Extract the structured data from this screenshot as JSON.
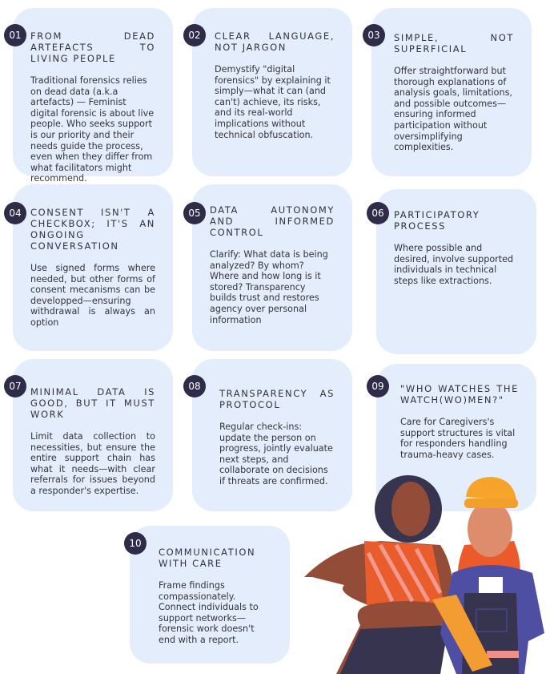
{
  "colors": {
    "card": "#e4edfb",
    "badge": "#2e2c48"
  },
  "cards": [
    {
      "num": "01",
      "title": "From dead artefacts to living people",
      "body": "Traditional forensics relies on dead data (a.k.a artefacts) — Feminist digital forensic is about live people. Who seeks support is our priority and their needs guide the process, even when they differ from what facilitators might recommend."
    },
    {
      "num": "02",
      "title": "Clear language, not jargon",
      "body": "Demystify \"digital forensics\" by explaining it simply—what it can (and can't) achieve, its risks, and its real-world implications without technical obfuscation."
    },
    {
      "num": "03",
      "title": "Simple, not superficial",
      "body": "Offer straightforward but thorough explanations of analysis goals, limitations, and possible outcomes—ensuring informed participation without oversimplifying complexities."
    },
    {
      "num": "04",
      "title": "Consent isn't a checkbox; it's an ongoing conversation",
      "body": "Use signed forms where needed, but other forms of consent mecanisms can be developped—ensuring withdrawal is always an option"
    },
    {
      "num": "05",
      "title": "Data autonomy and informed control",
      "body": "Clarify: What data is being analyzed? By whom? Where and how long is it stored? Transparency builds trust and restores agency over personal information"
    },
    {
      "num": "06",
      "title": "Participatory process",
      "body": "Where possible and desired, involve supported individuals in technical steps like extractions."
    },
    {
      "num": "07",
      "title": "Minimal data is good, but it must work",
      "body": "Limit data collection to necessities, but ensure the entire support chain has what it needs—with clear referrals for issues beyond a responder's expertise."
    },
    {
      "num": "08",
      "title": "Transparency as protocol",
      "body": "Regular check-ins: update the person on progress, jointly evaluate next steps, and collaborate on decisions if threats are confirmed."
    },
    {
      "num": "09",
      "title": "\"Who watches the watch(wo)men?\"",
      "body": "Care for Caregivers's support structures is vital for responders handling trauma-heavy cases."
    },
    {
      "num": "10",
      "title": "Communication with care",
      "body": "Frame findings compassionately. Connect individuals to support networks— forensic work doesn't end with a report."
    }
  ]
}
